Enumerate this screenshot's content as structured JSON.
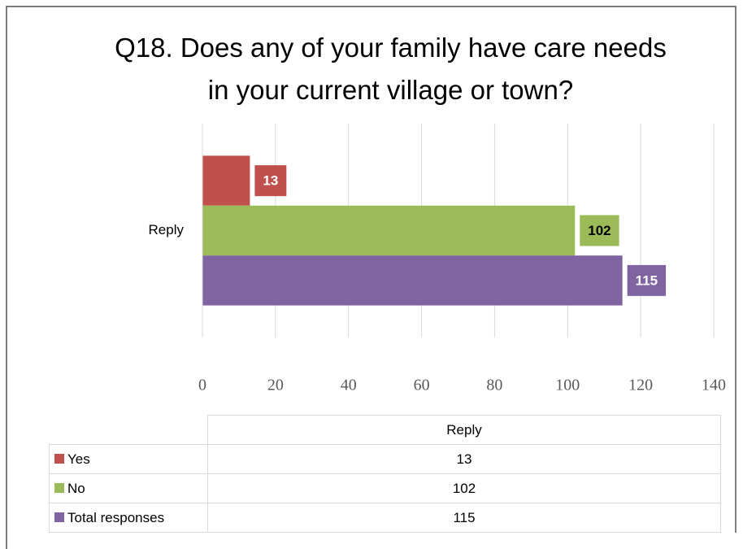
{
  "chart_data": {
    "type": "bar",
    "orientation": "horizontal",
    "title": "Q18. Does any of your family have care needs in your current village or town?",
    "categories": [
      "Reply"
    ],
    "series": [
      {
        "name": "Yes",
        "color": "#c0504d",
        "label_color": "#ffffff",
        "values": [
          13
        ]
      },
      {
        "name": "No",
        "color": "#9bbb59",
        "label_color": "#000000",
        "values": [
          102
        ]
      },
      {
        "name": "Total responses",
        "color": "#8064a2",
        "label_color": "#ffffff",
        "values": [
          115
        ]
      }
    ],
    "xlim": [
      0,
      140
    ],
    "xticks": [
      0,
      20,
      40,
      60,
      80,
      100,
      120,
      140
    ],
    "grid": true,
    "data_table": true
  }
}
